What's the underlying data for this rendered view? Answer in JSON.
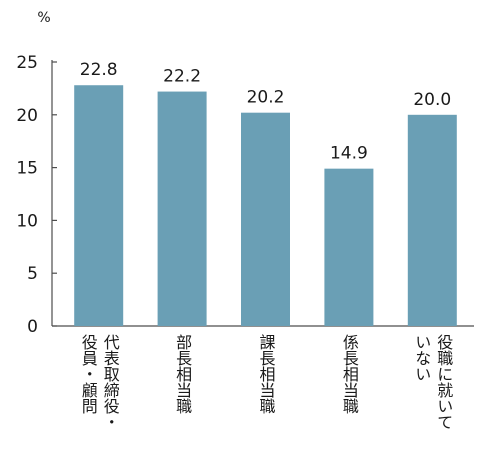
{
  "chart_data": {
    "type": "bar",
    "unit": "%",
    "categories": [
      "代表取締役・\n役員・顧問",
      "部長相当職",
      "課長相当職",
      "係長相当職",
      "役職に就いて\nいない"
    ],
    "values": [
      22.8,
      22.2,
      20.2,
      14.9,
      20.0
    ],
    "value_labels": [
      "22.8",
      "22.2",
      "20.2",
      "14.9",
      "20.0"
    ],
    "yticks": [
      "0",
      "5",
      "10",
      "15",
      "20",
      "25"
    ],
    "ylim": [
      0,
      25
    ],
    "grid": false,
    "colors": {
      "bar": "#6a9fb5",
      "axis": "#4d4d4d"
    }
  }
}
